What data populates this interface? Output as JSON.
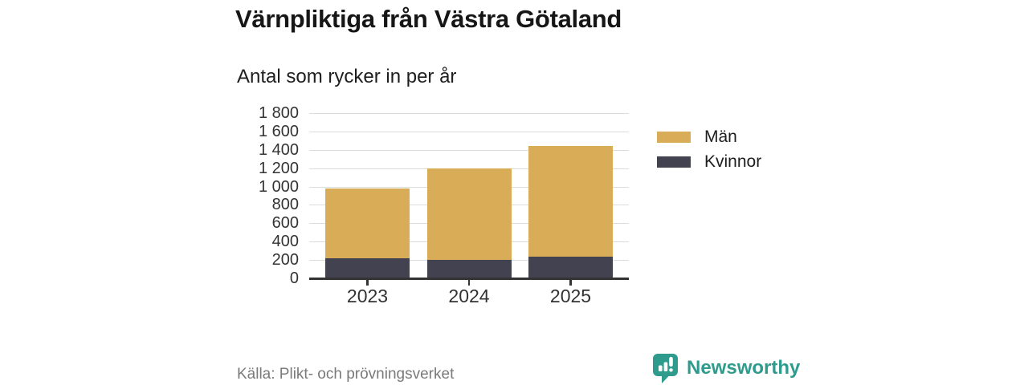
{
  "title": "Värnpliktiga från Västra Götaland",
  "subtitle": "Antal som rycker in per år",
  "source": "Källa: Plikt- och prövningsverket",
  "brand": {
    "name": "Newsworthy",
    "color": "#2e9b8d"
  },
  "legend": [
    {
      "label": "Män",
      "color": "#d9ac57"
    },
    {
      "label": "Kvinnor",
      "color": "#434250"
    }
  ],
  "colors": {
    "men": "#d9ac57",
    "women": "#434250",
    "gridline": "#dcdcdc",
    "axis": "#333333",
    "brand_teal": "#2e9b8d"
  },
  "chart_data": {
    "type": "bar",
    "stacked": true,
    "title": "Värnpliktiga från Västra Götaland",
    "subtitle": "Antal som rycker in per år",
    "categories": [
      "2023",
      "2024",
      "2025"
    ],
    "series": [
      {
        "name": "Kvinnor",
        "color": "#434250",
        "values": [
          215,
          205,
          235
        ]
      },
      {
        "name": "Män",
        "color": "#d9ac57",
        "values": [
          765,
          995,
          1205
        ]
      }
    ],
    "totals": [
      980,
      1200,
      1440
    ],
    "xlabel": "",
    "ylabel": "",
    "ylim": [
      0,
      1800
    ],
    "ytick_step": 200,
    "ytick_labels": [
      "0",
      "200",
      "400",
      "600",
      "800",
      "1 000",
      "1 200",
      "1 400",
      "1 600",
      "1 800"
    ],
    "grid": true,
    "legend_position": "right",
    "legend_order": [
      "Män",
      "Kvinnor"
    ]
  }
}
